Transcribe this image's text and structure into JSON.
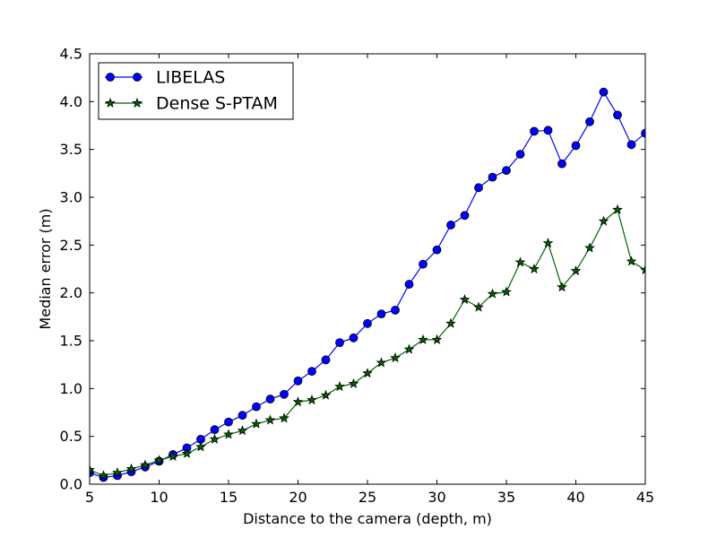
{
  "chart_data": {
    "type": "line",
    "title": "",
    "xlabel": "Distance to the camera (depth, m)",
    "ylabel": "Median error (m)",
    "xlim": [
      5,
      45
    ],
    "ylim": [
      0.0,
      4.5
    ],
    "xticks": [
      "5",
      "10",
      "15",
      "20",
      "25",
      "30",
      "35",
      "40",
      "45"
    ],
    "yticks": [
      "0.0",
      "0.5",
      "1.0",
      "1.5",
      "2.0",
      "2.5",
      "3.0",
      "3.5",
      "4.0",
      "4.5"
    ],
    "grid": false,
    "legend_position": "top-left",
    "series": [
      {
        "name": "LIBELAS",
        "color": "#0000ff",
        "marker": "circle",
        "x": [
          5,
          6,
          7,
          8,
          9,
          10,
          11,
          12,
          13,
          14,
          15,
          16,
          17,
          18,
          19,
          20,
          21,
          22,
          23,
          24,
          25,
          26,
          27,
          28,
          29,
          30,
          31,
          32,
          33,
          34,
          35,
          36,
          37,
          38,
          39,
          40,
          41,
          42,
          43,
          44,
          45
        ],
        "y": [
          0.12,
          0.07,
          0.09,
          0.13,
          0.18,
          0.24,
          0.31,
          0.38,
          0.47,
          0.57,
          0.65,
          0.72,
          0.81,
          0.89,
          0.94,
          1.08,
          1.18,
          1.3,
          1.48,
          1.53,
          1.68,
          1.78,
          1.82,
          2.09,
          2.3,
          2.45,
          2.71,
          2.81,
          3.1,
          3.21,
          3.28,
          3.45,
          3.69,
          3.7,
          3.35,
          3.54,
          3.79,
          4.1,
          3.86,
          3.55,
          3.67
        ]
      },
      {
        "name": "Dense S-PTAM",
        "color": "#006400",
        "marker": "star",
        "x": [
          5,
          6,
          7,
          8,
          9,
          10,
          11,
          12,
          13,
          14,
          15,
          16,
          17,
          18,
          19,
          20,
          21,
          22,
          23,
          24,
          25,
          26,
          27,
          28,
          29,
          30,
          31,
          32,
          33,
          34,
          35,
          36,
          37,
          38,
          39,
          40,
          41,
          42,
          43,
          44,
          45
        ],
        "y": [
          0.15,
          0.09,
          0.12,
          0.16,
          0.2,
          0.25,
          0.29,
          0.32,
          0.39,
          0.47,
          0.52,
          0.56,
          0.63,
          0.67,
          0.69,
          0.86,
          0.88,
          0.93,
          1.02,
          1.05,
          1.16,
          1.27,
          1.32,
          1.41,
          1.51,
          1.51,
          1.68,
          1.93,
          1.85,
          1.99,
          2.01,
          2.32,
          2.25,
          2.52,
          2.06,
          2.23,
          2.47,
          2.75,
          2.87,
          2.33,
          2.24
        ]
      }
    ]
  }
}
